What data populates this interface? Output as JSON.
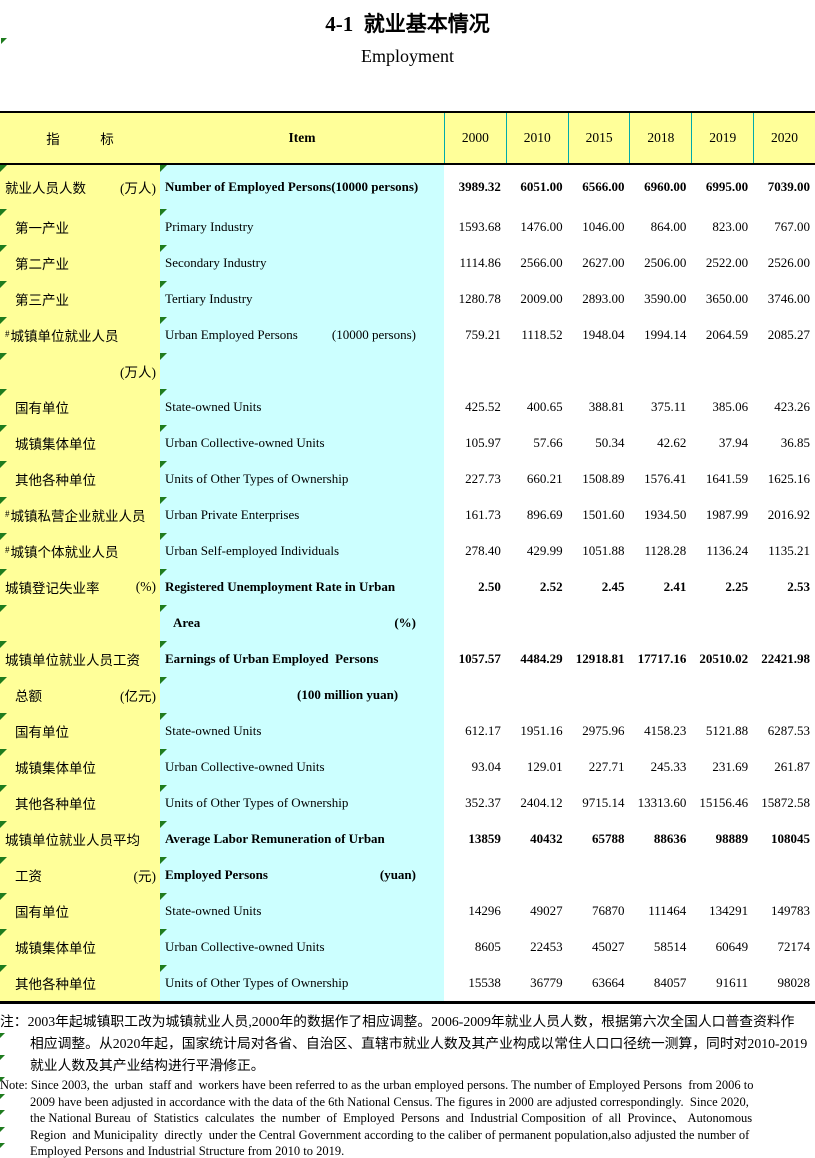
{
  "title_zh": "4-1  就业基本情况",
  "title_en": "Employment",
  "header": {
    "col_zh": "指　　　标",
    "col_en": "Item",
    "years": [
      "2000",
      "2010",
      "2015",
      "2018",
      "2019",
      "2020"
    ]
  },
  "rows": [
    {
      "zh": "就业人员人数",
      "zh_right": "(万人)",
      "en": "Number of Employed Persons(10000 persons)",
      "bold": true,
      "indent": 0,
      "values": [
        "3989.32",
        "6051.00",
        "6566.00",
        "6960.00",
        "6995.00",
        "7039.00"
      ]
    },
    {
      "zh": "第一产业",
      "en": "Primary Industry",
      "indent": 1,
      "values": [
        "1593.68",
        "1476.00",
        "1046.00",
        "864.00",
        "823.00",
        "767.00"
      ]
    },
    {
      "zh": "第二产业",
      "en": "Secondary Industry",
      "indent": 1,
      "values": [
        "1114.86",
        "2566.00",
        "2627.00",
        "2506.00",
        "2522.00",
        "2526.00"
      ]
    },
    {
      "zh": "第三产业",
      "en": "Tertiary Industry",
      "indent": 1,
      "values": [
        "1280.78",
        "2009.00",
        "2893.00",
        "3590.00",
        "3650.00",
        "3746.00"
      ]
    },
    {
      "prefix": "#",
      "zh": "城镇单位就业人员",
      "en": "Urban Employed Persons",
      "en_right": "(10000 persons)",
      "indent": 0,
      "values": [
        "759.21",
        "1118.52",
        "1948.04",
        "1994.14",
        "2064.59",
        "2085.27"
      ]
    },
    {
      "zh": "",
      "zh_right": "(万人)",
      "en": "",
      "values": []
    },
    {
      "zh": "国有单位",
      "en": "State-owned Units",
      "indent": 1,
      "values": [
        "425.52",
        "400.65",
        "388.81",
        "375.11",
        "385.06",
        "423.26"
      ]
    },
    {
      "zh": "城镇集体单位",
      "en": "Urban Collective-owned Units",
      "indent": 1,
      "values": [
        "105.97",
        "57.66",
        "50.34",
        "42.62",
        "37.94",
        "36.85"
      ]
    },
    {
      "zh": "其他各种单位",
      "en": "Units of Other Types of Ownership",
      "indent": 1,
      "values": [
        "227.73",
        "660.21",
        "1508.89",
        "1576.41",
        "1641.59",
        "1625.16"
      ]
    },
    {
      "prefix": "#",
      "zh": "城镇私营企业就业人员",
      "en": "Urban Private Enterprises",
      "indent": 0,
      "values": [
        "161.73",
        "896.69",
        "1501.60",
        "1934.50",
        "1987.99",
        "2016.92"
      ]
    },
    {
      "prefix": "#",
      "zh": "城镇个体就业人员",
      "en": "Urban Self-employed Individuals",
      "indent": 0,
      "values": [
        "278.40",
        "429.99",
        "1051.88",
        "1128.28",
        "1136.24",
        "1135.21"
      ]
    },
    {
      "zh": "城镇登记失业率",
      "zh_right": "(%)",
      "en": "Registered Unemployment Rate in Urban",
      "bold": true,
      "indent": 0,
      "values": [
        "2.50",
        "2.52",
        "2.45",
        "2.41",
        "2.25",
        "2.53"
      ]
    },
    {
      "zh": "",
      "en": "Area",
      "en_right": "(%)",
      "en_indent": 1,
      "bold": true,
      "values": []
    },
    {
      "zh": "城镇单位就业人员工资",
      "en": "Earnings of Urban Employed  Persons",
      "bold": true,
      "indent": 0,
      "values": [
        "1057.57",
        "4484.29",
        "12918.81",
        "17717.16",
        "20510.02",
        "22421.98"
      ]
    },
    {
      "zh": "总额",
      "zh_right": "(亿元)",
      "en_center": "(100 million yuan)",
      "bold": true,
      "indent": 1,
      "values": []
    },
    {
      "zh": "国有单位",
      "en": "State-owned Units",
      "indent": 1,
      "values": [
        "612.17",
        "1951.16",
        "2975.96",
        "4158.23",
        "5121.88",
        "6287.53"
      ]
    },
    {
      "zh": "城镇集体单位",
      "en": "Urban Collective-owned Units",
      "indent": 1,
      "values": [
        "93.04",
        "129.01",
        "227.71",
        "245.33",
        "231.69",
        "261.87"
      ]
    },
    {
      "zh": "其他各种单位",
      "en": "Units of Other Types of Ownership",
      "indent": 1,
      "values": [
        "352.37",
        "2404.12",
        "9715.14",
        "13313.60",
        "15156.46",
        "15872.58"
      ]
    },
    {
      "zh": "城镇单位就业人员平均",
      "en": "Average Labor Remuneration of Urban",
      "bold": true,
      "indent": 0,
      "values": [
        "13859",
        "40432",
        "65788",
        "88636",
        "98889",
        "108045"
      ]
    },
    {
      "zh": "工资",
      "zh_right": "(元)",
      "en": "Employed Persons",
      "en_right": "(yuan)",
      "bold": true,
      "indent": 1,
      "values": []
    },
    {
      "zh": "国有单位",
      "en": "State-owned Units",
      "indent": 1,
      "values": [
        "14296",
        "49027",
        "76870",
        "111464",
        "134291",
        "149783"
      ]
    },
    {
      "zh": "城镇集体单位",
      "en": "Urban Collective-owned Units",
      "indent": 1,
      "values": [
        "8605",
        "22453",
        "45027",
        "58514",
        "60649",
        "72174"
      ]
    },
    {
      "zh": "其他各种单位",
      "en": "Units of Other Types of Ownership",
      "indent": 1,
      "values": [
        "15538",
        "36779",
        "63664",
        "84057",
        "91611",
        "98028"
      ]
    }
  ],
  "notes": {
    "zh_lines": [
      {
        "text": "注：2003年起城镇职工改为城镇就业人员,2000年的数据作了相应调整。2006-2009年就业人员人数，根据第六次全国人口普查资料作",
        "indent": false,
        "marker": false
      },
      {
        "text": "相应调整。从2020年起，国家统计局对各省、自治区、直辖市就业人数及其产业构成以常住人口口径统一测算，同时对2010-2019",
        "indent": true,
        "marker": true
      },
      {
        "text": "就业人数及其产业结构进行平滑修正。",
        "indent": true,
        "marker": true
      }
    ],
    "en_lines": [
      {
        "text": "Note: Since 2003, the  urban  staff and  workers have been referred to as the urban employed persons. The number of Employed Persons  from 2006 to",
        "indent": false,
        "marker": true
      },
      {
        "text": "2009 have been adjusted in accordance with the data of the 6th National Census. The figures in 2000 are adjusted correspondingly.  Since 2020,",
        "indent": true,
        "marker": true
      },
      {
        "text": "the National Bureau  of  Statistics  calculates  the  number  of  Employed  Persons  and  Industrial Composition  of  all  Province、 Autonomous",
        "indent": true,
        "marker": true
      },
      {
        "text": "Region  and Municipality  directly  under the Central Government according to the caliber of permanent population,also adjusted the number of",
        "indent": true,
        "marker": true
      },
      {
        "text": "Employed Persons and Industrial Structure from 2010 to 2019.",
        "indent": true,
        "marker": true
      }
    ]
  },
  "colors": {
    "header_bg": "#FFFF99",
    "item_bg": "#CCFFFF",
    "grid_teal": "#00ABAB",
    "marker_green": "#1E7B1E",
    "border_black": "#000000"
  }
}
